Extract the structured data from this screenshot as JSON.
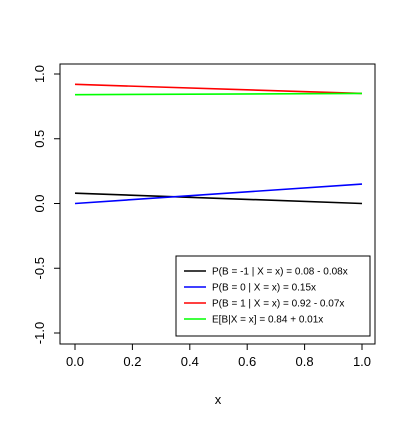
{
  "chart_data": {
    "type": "line",
    "xlabel": "x",
    "ylabel": "",
    "xlim": [
      0,
      1
    ],
    "ylim": [
      -1,
      1
    ],
    "x_ticks": [
      0.0,
      0.2,
      0.4,
      0.6,
      0.8,
      1.0
    ],
    "x_tick_labels": [
      "0.0",
      "0.2",
      "0.4",
      "0.6",
      "0.8",
      "1.0"
    ],
    "y_ticks": [
      -1.0,
      -0.5,
      0.0,
      0.5,
      1.0
    ],
    "y_tick_labels": [
      "-1.0",
      "-0.5",
      "0.0",
      "0.5",
      "1.0"
    ],
    "grid": false,
    "legend_position": "bottom-right",
    "series": [
      {
        "name": "P(B = -1 | X = x) = 0.08 - 0.08x",
        "color": "#000000",
        "x": [
          0,
          1
        ],
        "y": [
          0.08,
          0.0
        ]
      },
      {
        "name": "P(B = 0 | X = x) =  0.15x",
        "color": "#0000ff",
        "x": [
          0,
          1
        ],
        "y": [
          0.0,
          0.15
        ]
      },
      {
        "name": "P(B = 1 | X = x) = 0.92  - 0.07x",
        "color": "#ff0000",
        "x": [
          0,
          1
        ],
        "y": [
          0.92,
          0.85
        ]
      },
      {
        "name": "E[B|X = x] = 0.84 + 0.01x",
        "color": "#00ff00",
        "x": [
          0,
          1
        ],
        "y": [
          0.84,
          0.85
        ]
      }
    ]
  }
}
